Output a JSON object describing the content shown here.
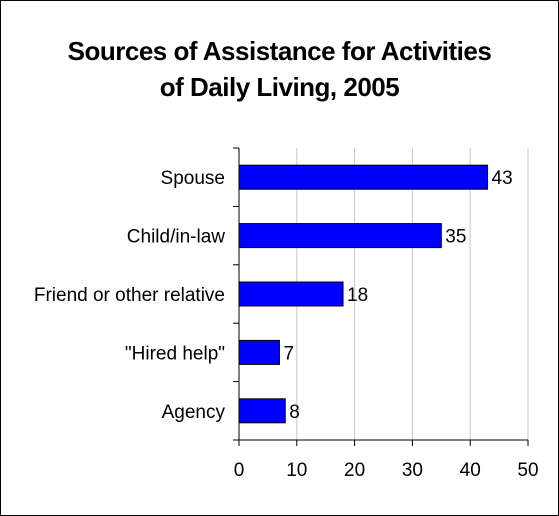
{
  "chart_data": {
    "type": "bar",
    "orientation": "horizontal",
    "title_lines": [
      "Sources of Assistance for Activities",
      "of Daily Living, 2005"
    ],
    "categories": [
      "Spouse",
      "Child/in-law",
      "Friend or other relative",
      "\"Hired help\"",
      "Agency"
    ],
    "values": [
      43,
      35,
      18,
      7,
      8
    ],
    "xlabel": "",
    "ylabel": "",
    "xlim": [
      0,
      50
    ],
    "xticks": [
      0,
      10,
      20,
      30,
      40,
      50
    ],
    "grid": "vertical",
    "legend": "none",
    "bar_color": "#0000FF",
    "bar_edge_color": "#000000"
  }
}
